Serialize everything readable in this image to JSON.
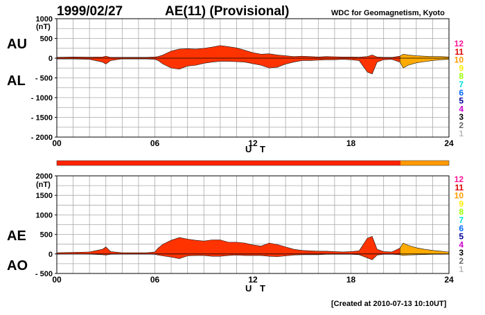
{
  "header": {
    "date": "1999/02/27",
    "title": "AE(11) (Provisional)",
    "source": "WDC for Geomagnetism, Kyoto"
  },
  "footer": {
    "created": "[Created at 2010-07-13 10:10UT]"
  },
  "colors": {
    "fill_main": "#ff3300",
    "fill_late": "#ffaa00",
    "grid": "#a8a8a8",
    "axis": "#000000",
    "data_bar_main": "#ff2200",
    "data_bar_late": "#ff9900"
  },
  "levels": [
    {
      "label": "12",
      "color": "#ff1493"
    },
    {
      "label": "11",
      "color": "#dd0000"
    },
    {
      "label": "10",
      "color": "#ff9900"
    },
    {
      "label": "9",
      "color": "#ffee00"
    },
    {
      "label": "8",
      "color": "#99ff00"
    },
    {
      "label": "7",
      "color": "#00dddd"
    },
    {
      "label": "6",
      "color": "#0066ff"
    },
    {
      "label": "5",
      "color": "#000099"
    },
    {
      "label": "4",
      "color": "#cc00cc"
    },
    {
      "label": "3",
      "color": "#000000"
    },
    {
      "label": "2",
      "color": "#666666"
    },
    {
      "label": "1",
      "color": "#bbbbbb"
    }
  ],
  "chart_data": [
    {
      "type": "area",
      "name": "AU/AL",
      "label_upper": "AU",
      "label_lower": "AL",
      "unit": "(nT)",
      "xlabel": "U T",
      "x_ticks": [
        "00",
        "06",
        "12",
        "18",
        "24"
      ],
      "xlim": [
        0,
        24
      ],
      "ylim": [
        -2000,
        1000
      ],
      "y_ticks": [
        1000,
        500,
        0,
        -500,
        -1000,
        -1500,
        -2000
      ],
      "y_tick_labels": [
        "1000",
        "500",
        "0",
        "- 500",
        "- 1000",
        "- 1500",
        "- 2000"
      ],
      "color_change_hour": 21,
      "series": [
        {
          "name": "AU",
          "x": [
            0,
            1,
            2,
            2.8,
            3,
            3.3,
            4,
            5,
            5.5,
            6,
            6.2,
            6.5,
            7,
            7.5,
            8,
            8.5,
            9,
            9.5,
            10,
            10.5,
            11,
            11.5,
            12,
            12.5,
            13,
            13.5,
            14,
            14.5,
            15,
            15.5,
            16,
            16.5,
            17,
            17.5,
            18,
            18.5,
            19,
            19.3,
            19.6,
            20,
            20.5,
            21,
            21.2,
            21.5,
            22,
            22.5,
            23,
            23.5,
            24
          ],
          "values": [
            20,
            30,
            25,
            30,
            50,
            20,
            20,
            20,
            20,
            30,
            40,
            80,
            180,
            230,
            240,
            230,
            250,
            280,
            320,
            290,
            260,
            200,
            140,
            100,
            110,
            80,
            60,
            40,
            50,
            40,
            30,
            40,
            35,
            30,
            30,
            25,
            40,
            80,
            30,
            20,
            20,
            50,
            100,
            80,
            60,
            50,
            40,
            40,
            30
          ]
        },
        {
          "name": "AL",
          "x": [
            0,
            1,
            2,
            2.8,
            3,
            3.3,
            4,
            5,
            5.5,
            6,
            6.2,
            6.5,
            7,
            7.5,
            8,
            8.5,
            9,
            9.5,
            10,
            10.5,
            11,
            11.5,
            12,
            12.5,
            13,
            13.5,
            14,
            14.5,
            15,
            15.5,
            16,
            16.5,
            17,
            17.5,
            18,
            18.5,
            19,
            19.3,
            19.6,
            20,
            20.5,
            21,
            21.2,
            21.5,
            22,
            22.5,
            23,
            23.5,
            24
          ],
          "values": [
            -20,
            -20,
            -30,
            -100,
            -150,
            -60,
            -20,
            -20,
            -20,
            -30,
            -60,
            -150,
            -250,
            -280,
            -200,
            -180,
            -130,
            -100,
            -80,
            -80,
            -90,
            -100,
            -140,
            -180,
            -250,
            -230,
            -150,
            -100,
            -60,
            -60,
            -50,
            -40,
            -40,
            -30,
            -40,
            -60,
            -350,
            -400,
            -100,
            -40,
            -30,
            -100,
            -250,
            -180,
            -120,
            -90,
            -60,
            -40,
            -30
          ]
        }
      ]
    },
    {
      "type": "area",
      "name": "AE/AO",
      "label_upper": "AE",
      "label_lower": "AO",
      "unit": "(nT)",
      "xlabel": "U T",
      "x_ticks": [
        "00",
        "06",
        "12",
        "18",
        "24"
      ],
      "xlim": [
        0,
        24
      ],
      "ylim": [
        -500,
        2000
      ],
      "y_ticks": [
        2000,
        1500,
        1000,
        500,
        0,
        -500
      ],
      "y_tick_labels": [
        "2000",
        "1500",
        "1000",
        "500",
        "0",
        "- 500"
      ],
      "color_change_hour": 21,
      "series": [
        {
          "name": "AE",
          "x": [
            0,
            1,
            2,
            2.8,
            3,
            3.3,
            4,
            5,
            5.5,
            6,
            6.2,
            6.5,
            7,
            7.5,
            8,
            8.5,
            9,
            9.5,
            10,
            10.5,
            11,
            11.5,
            12,
            12.5,
            13,
            13.5,
            14,
            14.5,
            15,
            15.5,
            16,
            16.5,
            17,
            17.5,
            18,
            18.5,
            19,
            19.3,
            19.6,
            20,
            20.5,
            21,
            21.2,
            21.5,
            22,
            22.5,
            23,
            23.5,
            24
          ],
          "values": [
            30,
            40,
            50,
            120,
            180,
            60,
            30,
            30,
            30,
            50,
            150,
            250,
            350,
            420,
            380,
            350,
            330,
            360,
            360,
            300,
            300,
            280,
            230,
            200,
            280,
            240,
            180,
            120,
            90,
            80,
            70,
            70,
            60,
            50,
            60,
            80,
            400,
            450,
            120,
            60,
            50,
            150,
            280,
            220,
            160,
            120,
            90,
            70,
            50
          ]
        },
        {
          "name": "AO",
          "x": [
            0,
            1,
            2,
            2.8,
            3,
            3.3,
            4,
            5,
            5.5,
            6,
            6.2,
            6.5,
            7,
            7.5,
            8,
            8.5,
            9,
            9.5,
            10,
            10.5,
            11,
            11.5,
            12,
            12.5,
            13,
            13.5,
            14,
            14.5,
            15,
            15.5,
            16,
            16.5,
            17,
            17.5,
            18,
            18.5,
            19,
            19.3,
            19.6,
            20,
            20.5,
            21,
            21.2,
            21.5,
            22,
            22.5,
            23,
            23.5,
            24
          ],
          "values": [
            -5,
            0,
            -5,
            -20,
            -30,
            -10,
            -5,
            -5,
            -5,
            -10,
            -30,
            -50,
            -80,
            -120,
            -50,
            -40,
            -40,
            -60,
            -60,
            -40,
            -30,
            -40,
            -40,
            -40,
            -60,
            -70,
            -50,
            -30,
            -20,
            -20,
            -20,
            -10,
            -10,
            -10,
            -10,
            -20,
            -100,
            -150,
            -30,
            -10,
            -10,
            -20,
            -40,
            -30,
            -20,
            -15,
            -10,
            -10,
            -5
          ]
        }
      ]
    }
  ]
}
